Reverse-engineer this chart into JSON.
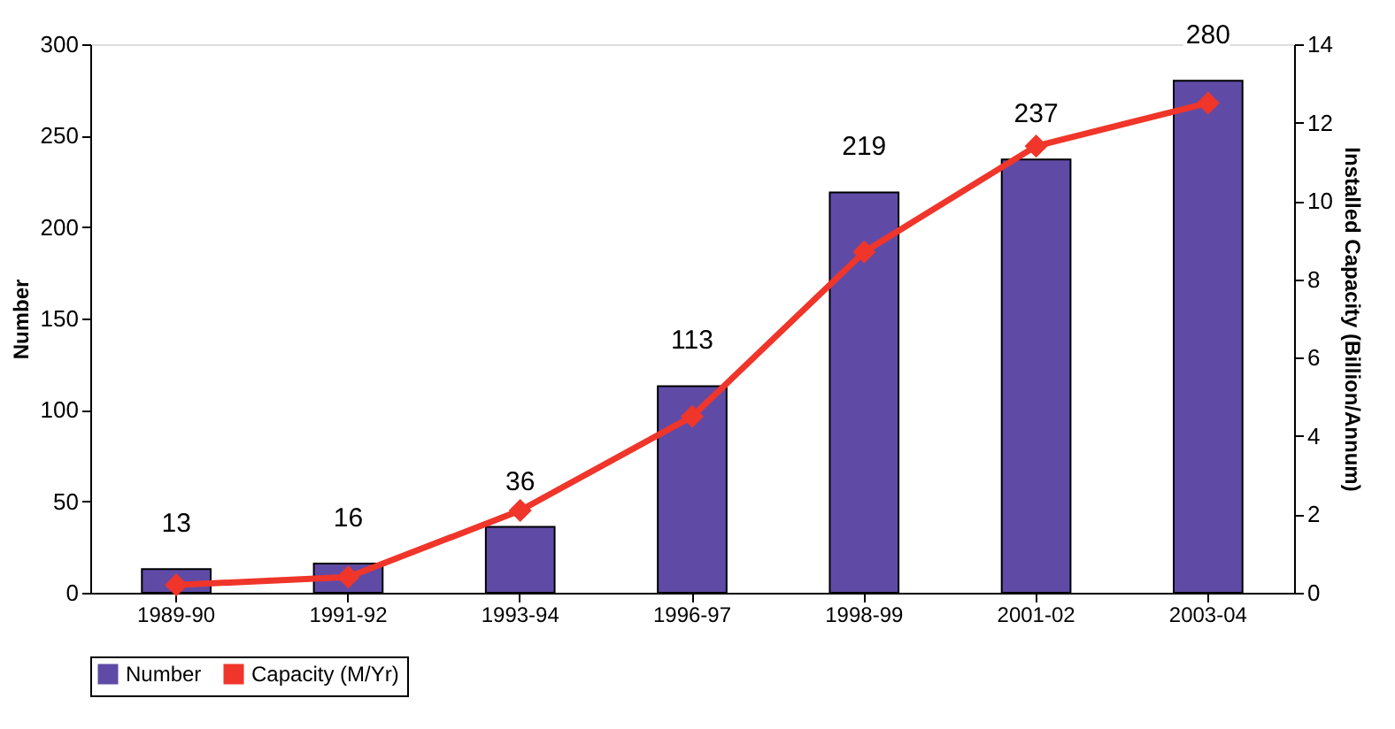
{
  "chart_data": {
    "type": "bar",
    "categories": [
      "1989-90",
      "1991-92",
      "1993-94",
      "1996-97",
      "1998-99",
      "2001-02",
      "2003-04"
    ],
    "series": [
      {
        "name": "Number",
        "color": "#5f4ba6",
        "values": [
          13,
          16,
          36,
          113,
          219,
          237,
          280
        ],
        "value_labels": [
          "13",
          "16",
          "36",
          "113",
          "219",
          "237",
          "280"
        ]
      },
      {
        "name": "Capacity (M/Yr)",
        "type": "line",
        "axis": "y2",
        "color": "#f0352a",
        "marker": "diamond",
        "values": [
          0.2,
          0.4,
          2.1,
          4.5,
          8.7,
          11.4,
          12.5
        ]
      }
    ],
    "ylabel": "Number",
    "y2label": "Installed Capacity (Billion/Annum)",
    "ylim": [
      0,
      300
    ],
    "yticks": [
      0,
      50,
      100,
      150,
      200,
      250,
      300
    ],
    "y2lim": [
      0,
      14
    ],
    "y2ticks": [
      0,
      2,
      4,
      6,
      8,
      10,
      12,
      14
    ],
    "grid": false,
    "legend": "bottom"
  }
}
